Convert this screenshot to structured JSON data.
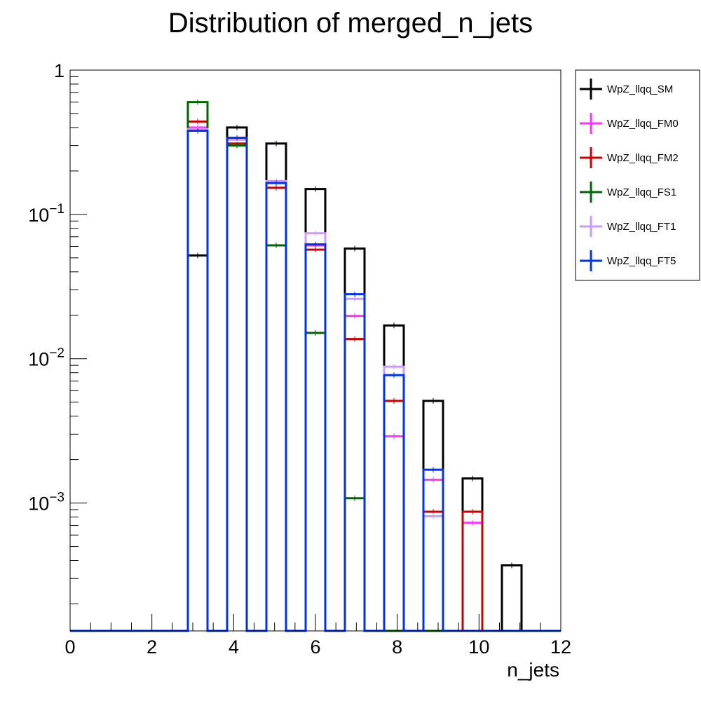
{
  "chart_data": {
    "type": "histogram",
    "title": "Distribution of merged_n_jets",
    "xlabel": "n_jets",
    "ylabel": "",
    "xlim": [
      0,
      12
    ],
    "ylim": [
      0.00013,
      1
    ],
    "yscale": "log",
    "bin_edges": [
      0.0,
      0.48,
      0.96,
      1.44,
      1.92,
      2.4,
      2.88,
      3.36,
      3.84,
      4.32,
      4.8,
      5.28,
      5.76,
      6.24,
      6.72,
      7.2,
      7.68,
      8.16,
      8.64,
      9.12,
      9.6,
      10.08,
      10.56,
      11.04,
      11.52,
      12.0
    ],
    "x_ticks": [
      "0",
      "2",
      "4",
      "6",
      "8",
      "10",
      "12"
    ],
    "y_ticks": [
      {
        "base": "10",
        "exp": "−3"
      },
      {
        "base": "10",
        "exp": "−2"
      },
      {
        "base": "10",
        "exp": "−1"
      },
      {
        "base": "1",
        "exp": ""
      }
    ],
    "legend_position": "top-right, outside plot",
    "series": [
      {
        "name": "WpZ_llqq_SM",
        "color": "#000000",
        "values": [
          0,
          0,
          0,
          0,
          0,
          0,
          0.052,
          0,
          0.4,
          0,
          0.31,
          0,
          0.15,
          0,
          0.058,
          0,
          0.017,
          0,
          0.0051,
          0,
          0.00148,
          0,
          0.00037,
          0,
          0
        ]
      },
      {
        "name": "WpZ_llqq_FM0",
        "color": "#ff33ff",
        "values": [
          0,
          0,
          0,
          0,
          0,
          0,
          0.4,
          0,
          0.33,
          0,
          0.17,
          0,
          0.061,
          0,
          0.0198,
          0,
          0.0029,
          0,
          0.00145,
          0,
          0.00073,
          0,
          0,
          0,
          0
        ]
      },
      {
        "name": "WpZ_llqq_FM2",
        "color": "#cc0000",
        "values": [
          0,
          0,
          0,
          0,
          0,
          0,
          0.44,
          0,
          0.31,
          0,
          0.153,
          0,
          0.057,
          0,
          0.0137,
          0,
          0.0051,
          0,
          0.00087,
          0,
          0.00087,
          0,
          0,
          0,
          0
        ]
      },
      {
        "name": "WpZ_llqq_FS1",
        "color": "#006600",
        "values": [
          0,
          0,
          0,
          0,
          0,
          0,
          0.6,
          0,
          0.3,
          0,
          0.061,
          0,
          0.0151,
          0,
          0.00108,
          0,
          0,
          0,
          0,
          0,
          0,
          0,
          0,
          0,
          0
        ]
      },
      {
        "name": "WpZ_llqq_FT1",
        "color": "#cc99ff",
        "values": [
          0,
          0,
          0,
          0,
          0,
          0,
          0.39,
          0,
          0.33,
          0,
          0.17,
          0,
          0.074,
          0,
          0.026,
          0,
          0.0088,
          0,
          0.00081,
          0,
          0,
          0,
          0,
          0,
          0
        ]
      },
      {
        "name": "WpZ_llqq_FT5",
        "color": "#0033ee",
        "values": [
          0,
          0,
          0,
          0,
          0,
          0,
          0.38,
          0,
          0.34,
          0,
          0.165,
          0,
          0.062,
          0,
          0.028,
          0,
          0.0077,
          0,
          0.0017,
          0,
          0,
          0,
          0,
          0,
          0
        ]
      }
    ]
  }
}
